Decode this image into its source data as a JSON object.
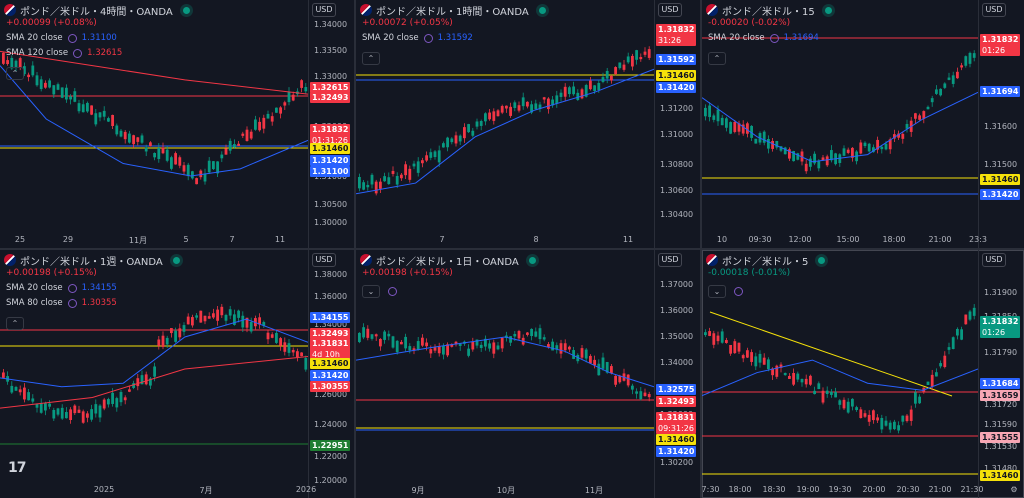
{
  "panels": [
    {
      "title": "ポンド／米ドル・4時間・OANDA",
      "change": "+0.00099 (+0.08%)",
      "indicators": [
        {
          "label": "SMA 20 close",
          "value": "1.31100",
          "color": "#2962ff"
        },
        {
          "label": "SMA 120 close",
          "value": "1.32615",
          "color": "#f23645"
        }
      ],
      "currency": "USD",
      "y_ticks": [
        "1.34000",
        "1.33500",
        "1.33000",
        "1.32000",
        "1.31000",
        "1.30500",
        "1.30000"
      ],
      "x_ticks": [
        "25",
        "29",
        "11月",
        "5",
        "7",
        "11"
      ],
      "tags": [
        {
          "text": "1.32615",
          "kind": "red"
        },
        {
          "text": "1.32493",
          "kind": "red"
        },
        {
          "text": "1.31832",
          "sub": "01:31:26",
          "kind": "red"
        },
        {
          "text": "1.31460",
          "kind": "yellow"
        },
        {
          "text": "1.31420",
          "kind": "blue"
        },
        {
          "text": "1.31100",
          "kind": "blue"
        }
      ]
    },
    {
      "title": "ポンド／米ドル・1時間・OANDA",
      "change": "+0.00072 (+0.05%)",
      "indicators": [
        {
          "label": "SMA 20 close",
          "value": "1.31592",
          "color": "#2962ff"
        }
      ],
      "currency": "USD",
      "y_ticks": [
        "1.31200",
        "1.31000",
        "1.30800",
        "1.30600",
        "1.30400"
      ],
      "x_ticks": [
        "7",
        "8",
        "11"
      ],
      "tags": [
        {
          "text": "1.31832",
          "sub": "31:26",
          "kind": "red"
        },
        {
          "text": "1.31592",
          "kind": "blue"
        },
        {
          "text": "1.31460",
          "kind": "yellow"
        },
        {
          "text": "1.31420",
          "kind": "blue"
        }
      ]
    },
    {
      "title": "ポンド／米ドル・15",
      "change": "-0.00020 (-0.02%)",
      "indicators": [
        {
          "label": "SMA 20 close",
          "value": "1.31694",
          "color": "#2962ff"
        }
      ],
      "currency": "USD",
      "y_ticks": [
        "1.31600",
        "1.31500",
        "1.31400"
      ],
      "x_ticks": [
        "10",
        "09:30",
        "12:00",
        "15:00",
        "18:00",
        "21:00",
        "23:3"
      ],
      "tags": [
        {
          "text": "1.31832",
          "sub": "01:26",
          "kind": "red"
        },
        {
          "text": "1.31694",
          "kind": "blue"
        },
        {
          "text": "1.31460",
          "kind": "yellow"
        },
        {
          "text": "1.31420",
          "kind": "blue"
        }
      ]
    },
    {
      "title": "ポンド／米ドル・1週・OANDA",
      "change": "+0.00198 (+0.15%)",
      "indicators": [
        {
          "label": "SMA 20 close",
          "value": "1.34155",
          "color": "#2962ff"
        },
        {
          "label": "SMA 80 close",
          "value": "1.30355",
          "color": "#f23645"
        }
      ],
      "currency": "USD",
      "y_ticks": [
        "1.38000",
        "1.36000",
        "1.34000",
        "1.26000",
        "1.24000",
        "1.22000",
        "1.20000"
      ],
      "x_ticks": [
        "2025",
        "7月",
        "2026"
      ],
      "tags": [
        {
          "text": "1.34155",
          "kind": "blue"
        },
        {
          "text": "1.32493",
          "kind": "red"
        },
        {
          "text": "1.31831",
          "sub": "4d 10h",
          "kind": "red"
        },
        {
          "text": "1.31460",
          "kind": "yellow"
        },
        {
          "text": "1.31420",
          "kind": "blue"
        },
        {
          "text": "1.30355",
          "kind": "red"
        },
        {
          "text": "1.22951",
          "kind": "green"
        }
      ]
    },
    {
      "title": "ポンド／米ドル・1日・OANDA",
      "change": "+0.00198 (+0.15%)",
      "indicators": [],
      "currency": "USD",
      "y_ticks": [
        "1.37000",
        "1.36000",
        "1.35000",
        "1.34000",
        "1.32000",
        "1.30200"
      ],
      "x_ticks": [
        "9月",
        "10月",
        "11月"
      ],
      "tags": [
        {
          "text": "1.32575",
          "kind": "blue"
        },
        {
          "text": "1.32493",
          "kind": "red"
        },
        {
          "text": "1.31831",
          "sub": "09:31:26",
          "kind": "red"
        },
        {
          "text": "1.31460",
          "kind": "yellow"
        },
        {
          "text": "1.31420",
          "kind": "blue"
        }
      ]
    },
    {
      "title": "ポンド／米ドル・5",
      "change": "-0.00018 (-0.01%)",
      "indicators": [],
      "currency": "USD",
      "y_ticks": [
        "1.31900",
        "1.31850",
        "1.31790",
        "1.31720",
        "1.31590",
        "1.31530",
        "1.31480"
      ],
      "x_ticks": [
        "17:30",
        "18:00",
        "18:30",
        "19:00",
        "19:30",
        "20:00",
        "20:30",
        "21:00",
        "21:30"
      ],
      "tags": [
        {
          "text": "1.31832",
          "sub": "01:26",
          "kind": "teal"
        },
        {
          "text": "1.31684",
          "kind": "blue"
        },
        {
          "text": "1.31659",
          "kind": "pink"
        },
        {
          "text": "1.31555",
          "kind": "pink"
        },
        {
          "text": "1.31460",
          "kind": "yellow"
        }
      ]
    }
  ],
  "logo": "17"
}
